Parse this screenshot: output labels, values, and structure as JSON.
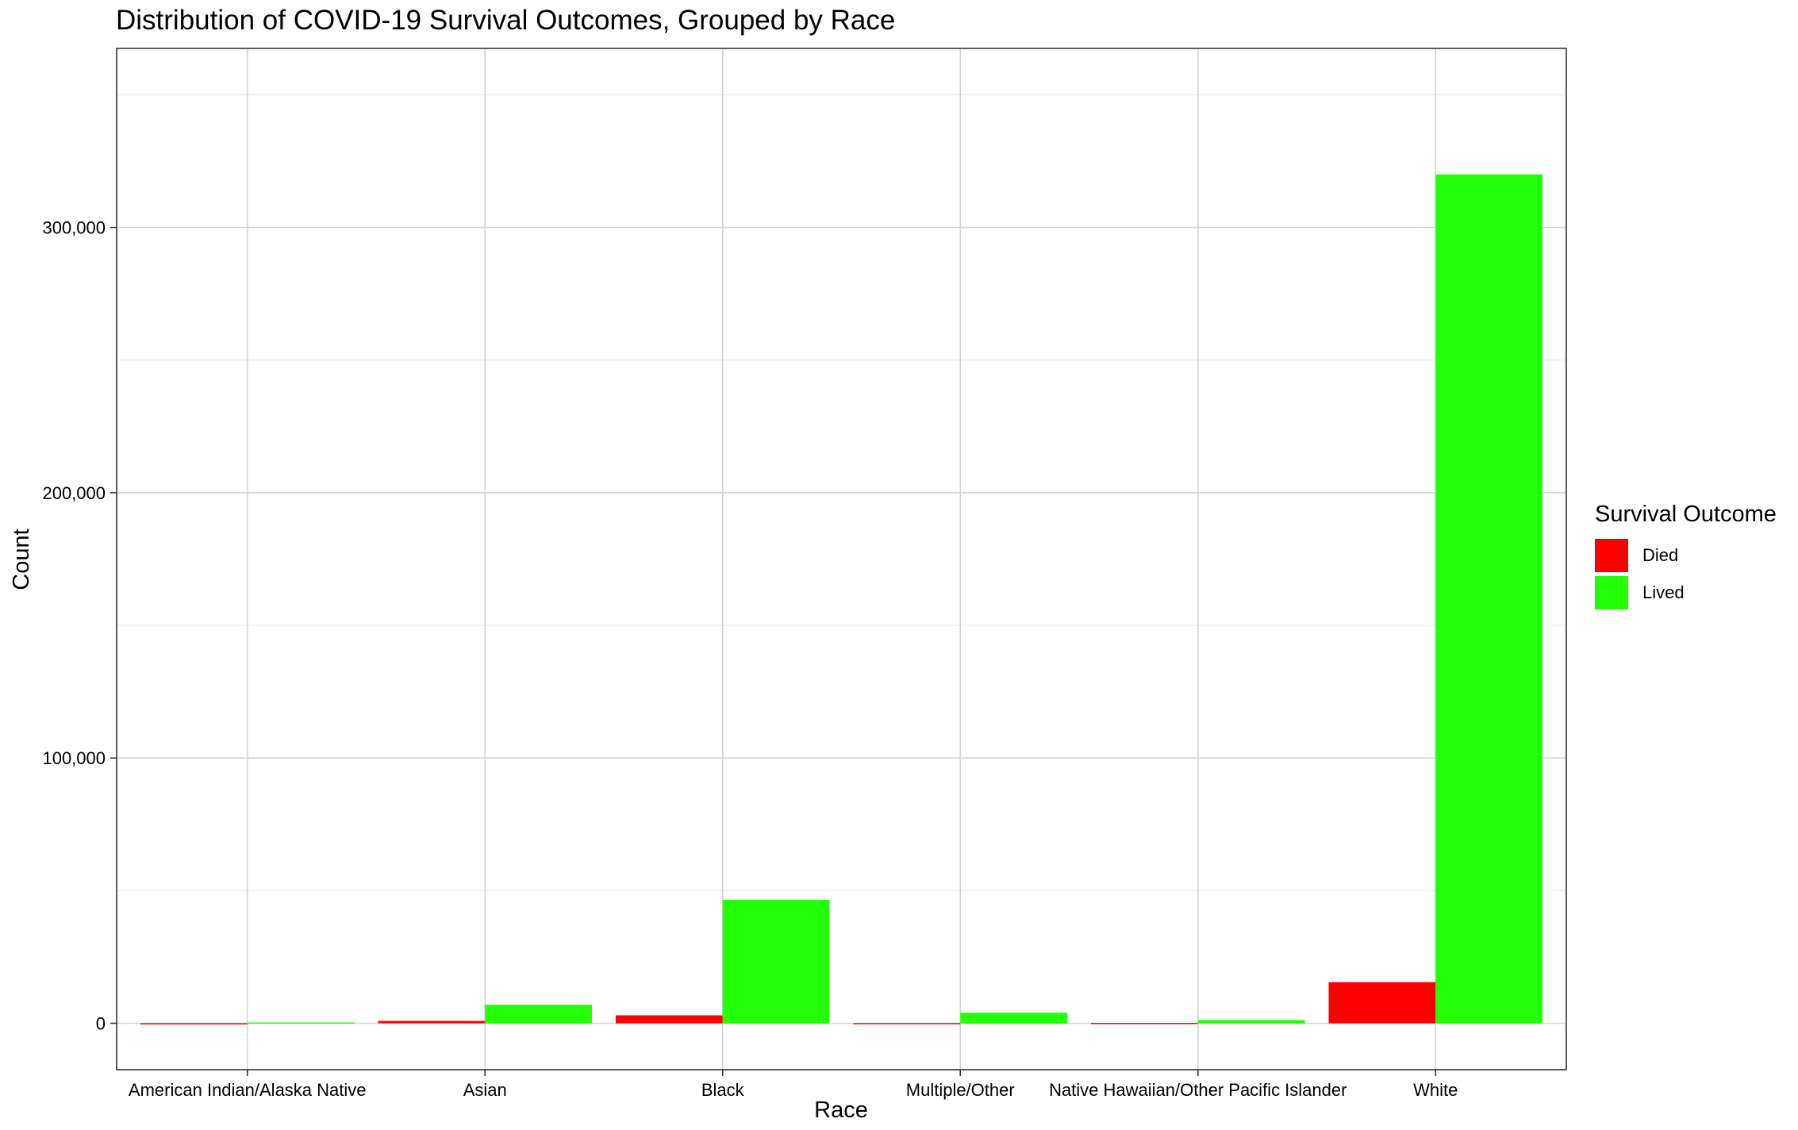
{
  "chart_data": {
    "type": "bar",
    "title": "Distribution of COVID-19 Survival Outcomes, Grouped by Race",
    "xlabel": "Race",
    "ylabel": "Count",
    "categories": [
      "American Indian/Alaska Native",
      "Asian",
      "Black",
      "Multiple/Other",
      "Native Hawaiian/Other Pacific Islander",
      "White"
    ],
    "series": [
      {
        "name": "Died",
        "color": "#ff0000",
        "values": [
          30,
          900,
          3000,
          80,
          150,
          15500
        ]
      },
      {
        "name": "Lived",
        "color": "#22ff08",
        "values": [
          300,
          7000,
          46500,
          4000,
          1200,
          320000
        ]
      }
    ],
    "ylim": [
      -17500,
      367500
    ],
    "yticks": [
      0,
      100000,
      200000,
      300000
    ],
    "ytick_labels": [
      "0",
      "100,000",
      "200,000",
      "300,000"
    ],
    "grid": true,
    "legend": {
      "title": "Survival Outcome",
      "position": "right"
    }
  }
}
